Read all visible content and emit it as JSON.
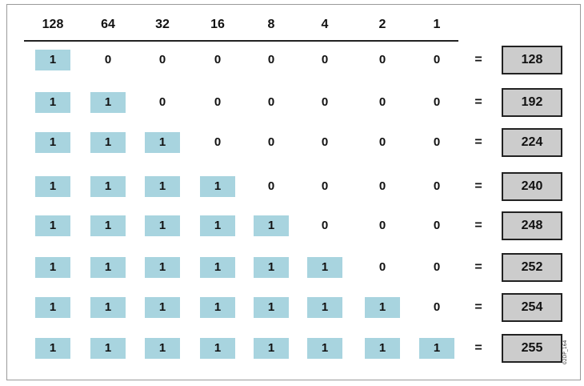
{
  "headers": [
    "128",
    "64",
    "32",
    "16",
    "8",
    "4",
    "2",
    "1"
  ],
  "rows": [
    {
      "bits": [
        "1",
        "0",
        "0",
        "0",
        "0",
        "0",
        "0",
        "0"
      ],
      "equals": "=",
      "result": "128"
    },
    {
      "bits": [
        "1",
        "1",
        "0",
        "0",
        "0",
        "0",
        "0",
        "0"
      ],
      "equals": "=",
      "result": "192"
    },
    {
      "bits": [
        "1",
        "1",
        "1",
        "0",
        "0",
        "0",
        "0",
        "0"
      ],
      "equals": "=",
      "result": "224"
    },
    {
      "bits": [
        "1",
        "1",
        "1",
        "1",
        "0",
        "0",
        "0",
        "0"
      ],
      "equals": "=",
      "result": "240"
    },
    {
      "bits": [
        "1",
        "1",
        "1",
        "1",
        "1",
        "0",
        "0",
        "0"
      ],
      "equals": "=",
      "result": "248"
    },
    {
      "bits": [
        "1",
        "1",
        "1",
        "1",
        "1",
        "1",
        "0",
        "0"
      ],
      "equals": "=",
      "result": "252"
    },
    {
      "bits": [
        "1",
        "1",
        "1",
        "1",
        "1",
        "1",
        "1",
        "0"
      ],
      "equals": "=",
      "result": "254"
    },
    {
      "bits": [
        "1",
        "1",
        "1",
        "1",
        "1",
        "1",
        "1",
        "1"
      ],
      "equals": "=",
      "result": "255"
    }
  ],
  "figure_id": "02DP_164",
  "colors": {
    "set_bit": "#a8d4df",
    "result_box": "#cccccc",
    "border": "#222222"
  }
}
